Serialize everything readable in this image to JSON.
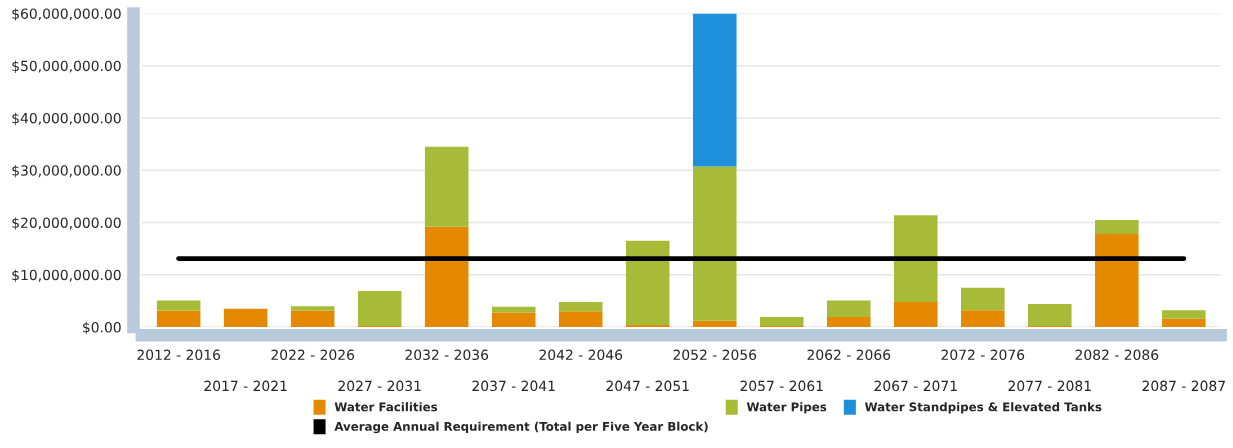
{
  "chart_data": {
    "type": "bar",
    "stacked": true,
    "categories": [
      "2012 - 2016",
      "2017 - 2021",
      "2022 - 2026",
      "2027 - 2031",
      "2032 - 2036",
      "2037 - 2041",
      "2042 - 2046",
      "2047 - 2051",
      "2052 - 2056",
      "2057 - 2061",
      "2062 - 2066",
      "2067 - 2071",
      "2072 - 2076",
      "2077 - 2081",
      "2082 - 2086",
      "2087 - 2087"
    ],
    "series": [
      {
        "name": "Water Facilities",
        "color": "#e58a00",
        "values": [
          3100000.0,
          3500000.0,
          3100000.0,
          200000.0,
          19200000.0,
          2800000.0,
          3000000.0,
          400000.0,
          1200000.0,
          200000.0,
          1900000.0,
          4800000.0,
          3200000.0,
          200000.0,
          17800000.0,
          1600000.0
        ]
      },
      {
        "name": "Water Pipes",
        "color": "#a8bb38",
        "values": [
          2000000.0,
          null,
          900000.0,
          6700000.0,
          15300000.0,
          1100000.0,
          1800000.0,
          16100000.0,
          29500000.0,
          1700000.0,
          3200000.0,
          16600000.0,
          4300000.0,
          4200000.0,
          2700000.0,
          1600000.0
        ]
      },
      {
        "name": "Water Standpipes & Elevated Tanks",
        "color": "#1e90dc",
        "values": [
          null,
          null,
          null,
          null,
          null,
          null,
          null,
          null,
          29300000.0,
          null,
          null,
          null,
          null,
          null,
          null,
          null
        ]
      },
      {
        "name": "Average Annual Requirement (Total per Five Year Block)",
        "type": "line",
        "color": "#000000",
        "values": [
          13100000.0,
          13100000.0,
          13100000.0,
          13100000.0,
          13100000.0,
          13100000.0,
          13100000.0,
          13100000.0,
          13100000.0,
          13100000.0,
          13100000.0,
          13100000.0,
          13100000.0,
          13100000.0,
          13100000.0,
          13100000.0
        ]
      }
    ],
    "ylim": [
      0,
      60000000
    ],
    "yticks": [
      {
        "value": 0,
        "label": "$0.00"
      },
      {
        "value": 10000000,
        "label": "$10,000,000.00"
      },
      {
        "value": 20000000,
        "label": "$20,000,000.00"
      },
      {
        "value": 30000000,
        "label": "$30,000,000.00"
      },
      {
        "value": 40000000,
        "label": "$40,000,000.00"
      },
      {
        "value": 50000000,
        "label": "$50,000,000.00"
      },
      {
        "value": 60000000,
        "label": "$60,000,000.00"
      }
    ],
    "grid": "y",
    "legend": "bottom"
  }
}
